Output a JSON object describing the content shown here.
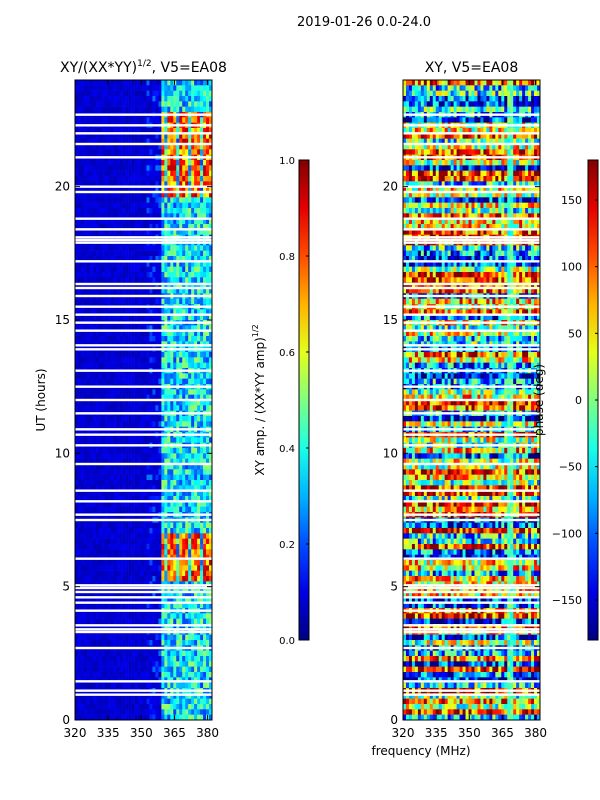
{
  "suptitle": "2019-01-26 0.0-24.0",
  "xlabel": "frequency (MHz)",
  "chart_data": [
    {
      "type": "heatmap",
      "title_main": "XY/(XX*YY)",
      "title_sup": "1/2",
      "title_tail": ", V5=EA08",
      "ylabel": "UT (hours)",
      "xlim": [
        320,
        382
      ],
      "ylim": [
        0,
        24
      ],
      "xticks": [
        320,
        335,
        350,
        365,
        380
      ],
      "yticks": [
        0,
        5,
        10,
        15,
        20
      ],
      "colorbar": {
        "label_main": "XY amp. / (XX*YY amp)",
        "label_sup": "1/2",
        "range": [
          0.0,
          1.0
        ],
        "ticks": [
          "0.0",
          "0.2",
          "0.4",
          "0.6",
          "0.8",
          "1.0"
        ],
        "colormap": "jet"
      },
      "data_gaps_ut": [
        0.95,
        1.1,
        1.45,
        2.7,
        3.3,
        3.4,
        3.55,
        4.1,
        4.4,
        4.6,
        4.8,
        4.95,
        5.05,
        6.05,
        7.5,
        7.7,
        8.2,
        8.6,
        9.6,
        10.3,
        10.7,
        10.9,
        11.5,
        12.0,
        12.5,
        13.1,
        13.9,
        14.05,
        14.6,
        14.9,
        15.2,
        15.5,
        15.9,
        16.2,
        16.35,
        17.2,
        17.9,
        18.0,
        18.1,
        18.4,
        18.8,
        19.8,
        20.0,
        21.1,
        21.6,
        22.0,
        22.3,
        22.7
      ],
      "features": {
        "background_level": 0.05,
        "high_band_start_mhz": 359,
        "bright_ut_ranges": [
          [
            5.2,
            6.9
          ],
          [
            19.7,
            22.8
          ]
        ]
      }
    },
    {
      "type": "heatmap",
      "title_main": "XY, V5=EA08",
      "title_sup": "",
      "title_tail": "",
      "ylabel": "",
      "xlim": [
        320,
        382
      ],
      "ylim": [
        0,
        24
      ],
      "xticks": [
        320,
        335,
        350,
        365,
        380
      ],
      "yticks": [
        0,
        5,
        10,
        15,
        20
      ],
      "colorbar": {
        "label_main": "phase (deg)",
        "label_sup": "",
        "range": [
          -180,
          180
        ],
        "ticks": [
          "−150",
          "−100",
          "−50",
          "0",
          "50",
          "100",
          "150"
        ],
        "colormap": "jet"
      },
      "data_gaps_ut": [
        0.95,
        1.1,
        1.45,
        2.7,
        3.3,
        3.4,
        3.55,
        4.1,
        4.4,
        4.6,
        4.8,
        4.95,
        5.05,
        6.05,
        7.5,
        7.7,
        8.2,
        8.6,
        9.6,
        10.3,
        10.7,
        10.9,
        11.5,
        12.0,
        12.5,
        13.1,
        13.9,
        14.05,
        14.6,
        14.9,
        15.2,
        15.5,
        15.9,
        16.2,
        16.35,
        17.2,
        17.9,
        18.0,
        18.1,
        18.4,
        18.8,
        19.8,
        20.0,
        21.1,
        21.6,
        22.0,
        22.3,
        22.7
      ]
    }
  ]
}
